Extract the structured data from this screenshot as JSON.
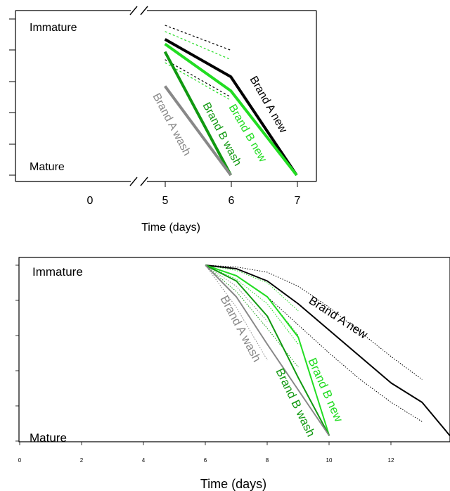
{
  "chart_data": [
    {
      "type": "line",
      "xlabel": "Time (days)",
      "ylabel": "",
      "y_top_label": "Immature",
      "y_bottom_label": "Mature",
      "x_ticks": [
        "0",
        "5",
        "6",
        "7"
      ],
      "axis_break": true,
      "xlim": [
        4.0,
        7.3
      ],
      "ylim": [
        0,
        1
      ],
      "colors": {
        "brand_a_new": "#000000",
        "brand_b_new": "#22dd22",
        "brand_a_wash": "#888888",
        "brand_b_wash": "#119911"
      },
      "series": [
        {
          "name": "Brand A new",
          "color": "#000000",
          "x": [
            5,
            6,
            7
          ],
          "y": [
            0.87,
            0.63,
            0
          ]
        },
        {
          "name": "Brand B new",
          "color": "#22dd22",
          "x": [
            5,
            6,
            7
          ],
          "y": [
            0.84,
            0.54,
            0
          ]
        },
        {
          "name": "Brand B wash",
          "color": "#119911",
          "x": [
            5,
            6
          ],
          "y": [
            0.79,
            0
          ]
        },
        {
          "name": "Brand A wash",
          "color": "#888888",
          "x": [
            5,
            6
          ],
          "y": [
            0.57,
            0
          ]
        }
      ],
      "dotted_bounds": [
        {
          "color": "#000000",
          "x": [
            5,
            6
          ],
          "y": [
            0.96,
            0.8
          ]
        },
        {
          "color": "#000000",
          "x": [
            5,
            6
          ],
          "y": [
            0.74,
            0.5
          ]
        },
        {
          "color": "#22dd22",
          "x": [
            5,
            6
          ],
          "y": [
            0.92,
            0.74
          ]
        },
        {
          "color": "#22dd22",
          "x": [
            5,
            6
          ],
          "y": [
            0.72,
            0.48
          ]
        }
      ]
    },
    {
      "type": "line",
      "xlabel": "Time (days)",
      "ylabel": "",
      "y_top_label": "Immature",
      "y_bottom_label": "Mature",
      "x_ticks": [
        "0",
        "2",
        "4",
        "6",
        "8",
        "10",
        "12"
      ],
      "xlim": [
        0,
        13.9
      ],
      "ylim": [
        0,
        1
      ],
      "colors": {
        "brand_a_new": "#000000",
        "brand_b_new": "#22dd22",
        "brand_a_wash": "#888888",
        "brand_b_wash": "#119911"
      },
      "series": [
        {
          "name": "Brand A new",
          "color": "#000000",
          "x": [
            6,
            7,
            8,
            9,
            10,
            11,
            12,
            13,
            13.9
          ],
          "y": [
            1.0,
            0.98,
            0.91,
            0.78,
            0.63,
            0.48,
            0.33,
            0.22,
            0.03
          ]
        },
        {
          "name": "Brand B new",
          "color": "#22dd22",
          "x": [
            6,
            7,
            8,
            9,
            10
          ],
          "y": [
            1.0,
            0.94,
            0.82,
            0.59,
            0.03
          ]
        },
        {
          "name": "Brand B wash",
          "color": "#119911",
          "x": [
            6,
            7,
            8,
            9,
            10
          ],
          "y": [
            1.0,
            0.91,
            0.71,
            0.36,
            0.03
          ]
        },
        {
          "name": "Brand A wash",
          "color": "#888888",
          "x": [
            6,
            7,
            8,
            9,
            10
          ],
          "y": [
            1.0,
            0.82,
            0.55,
            0.29,
            0.03
          ]
        }
      ],
      "dotted_bounds": [
        {
          "color": "#000000",
          "x": [
            6,
            7,
            8,
            9,
            10,
            11,
            12,
            13
          ],
          "y": [
            1.0,
            0.99,
            0.96,
            0.88,
            0.76,
            0.62,
            0.48,
            0.35
          ]
        },
        {
          "color": "#000000",
          "x": [
            6,
            7,
            8,
            9,
            10,
            11,
            12,
            13
          ],
          "y": [
            1.0,
            0.94,
            0.82,
            0.66,
            0.5,
            0.35,
            0.22,
            0.11
          ]
        },
        {
          "color": "#22dd22",
          "x": [
            6,
            7,
            8,
            9
          ],
          "y": [
            1.0,
            0.97,
            0.9,
            0.74
          ]
        },
        {
          "color": "#22dd22",
          "x": [
            6,
            7,
            8,
            9
          ],
          "y": [
            1.0,
            0.92,
            0.78,
            0.55
          ]
        },
        {
          "color": "#119911",
          "x": [
            6,
            7,
            8,
            9
          ],
          "y": [
            1.0,
            0.94,
            0.82,
            0.6
          ]
        },
        {
          "color": "#119911",
          "x": [
            6,
            7,
            8,
            9
          ],
          "y": [
            1.0,
            0.85,
            0.64,
            0.42
          ]
        },
        {
          "color": "#888888",
          "x": [
            6,
            7,
            8
          ],
          "y": [
            1.0,
            0.88,
            0.68
          ]
        },
        {
          "color": "#888888",
          "x": [
            6,
            7,
            8
          ],
          "y": [
            1.0,
            0.76,
            0.46
          ]
        }
      ]
    }
  ]
}
